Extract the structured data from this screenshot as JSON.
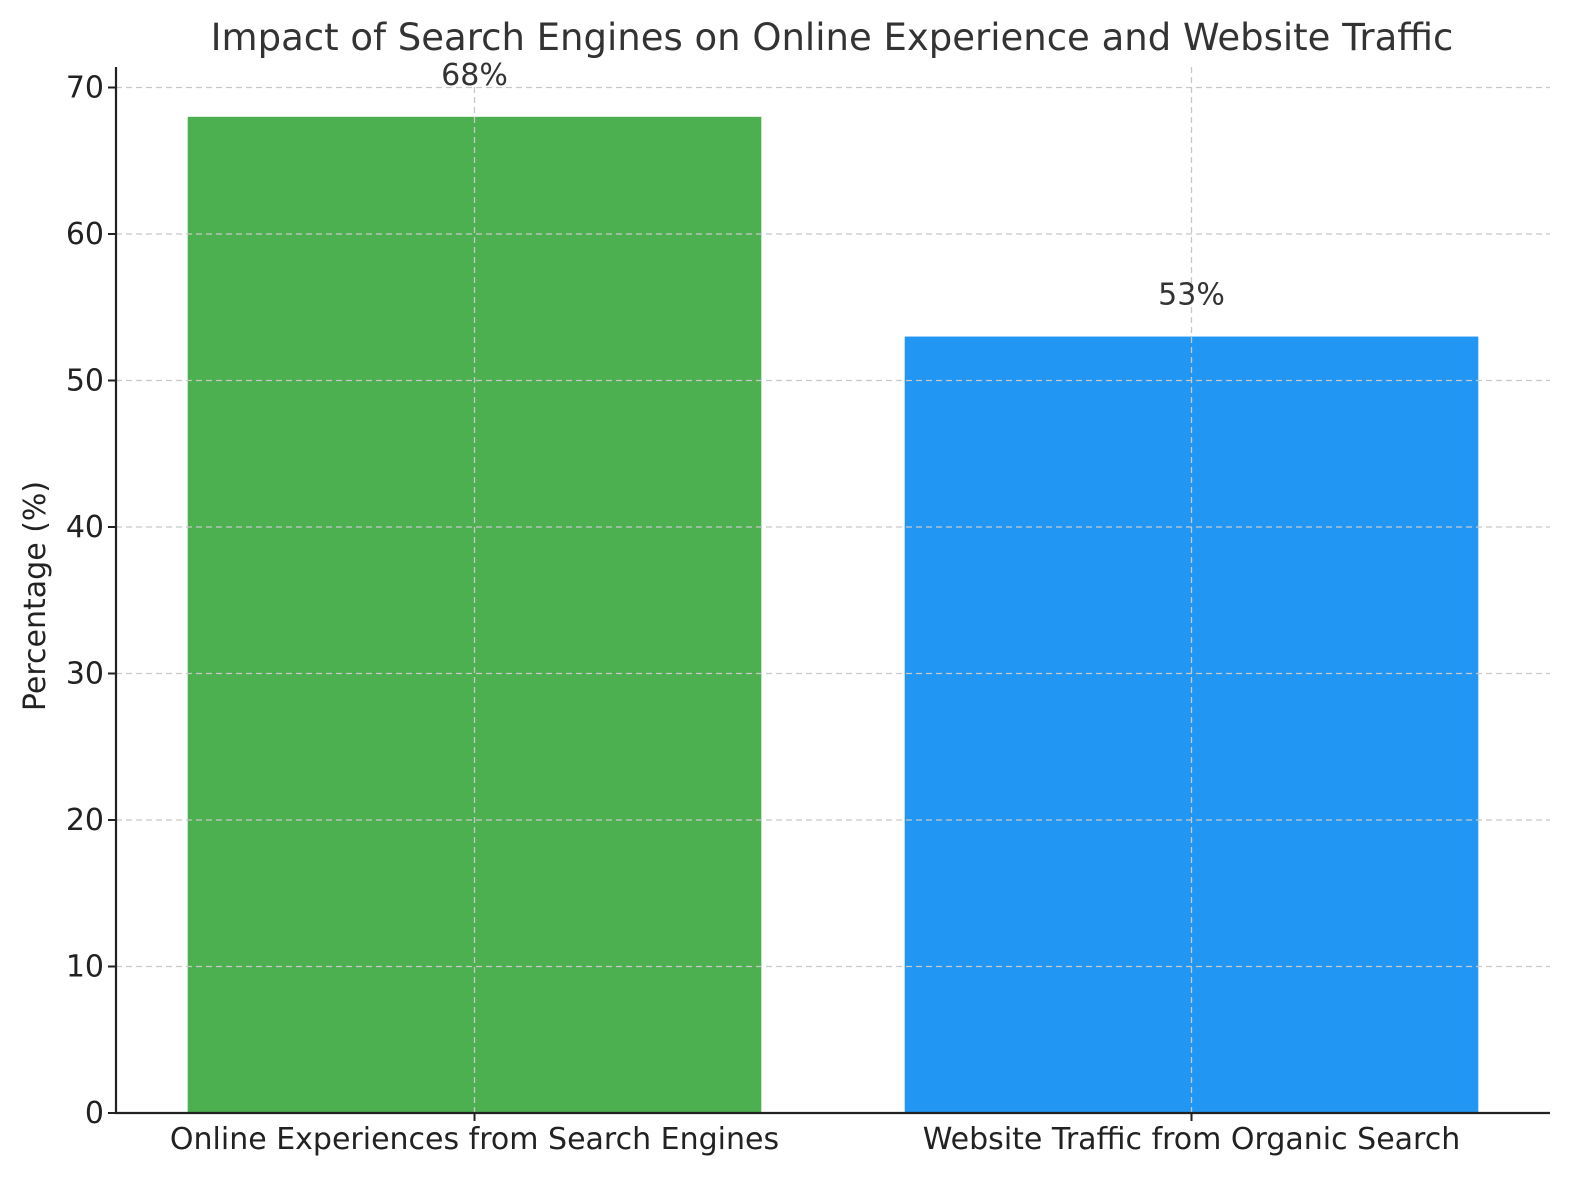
{
  "chart_data": {
    "type": "bar",
    "title": "Impact of Search Engines on Online Experience and Website Traffic",
    "xlabel": "",
    "ylabel": "Percentage (%)",
    "categories": [
      "Online Experiences from Search Engines",
      "Website Traffic from Organic Search"
    ],
    "values": [
      68,
      53
    ],
    "data_labels": [
      "68%",
      "53%"
    ],
    "colors": [
      "#4caf50",
      "#2196f3"
    ],
    "ylim": [
      0,
      71.4
    ],
    "yticks": [
      0,
      10,
      20,
      30,
      40,
      50,
      60,
      70
    ],
    "grid": true,
    "legend": "none"
  }
}
